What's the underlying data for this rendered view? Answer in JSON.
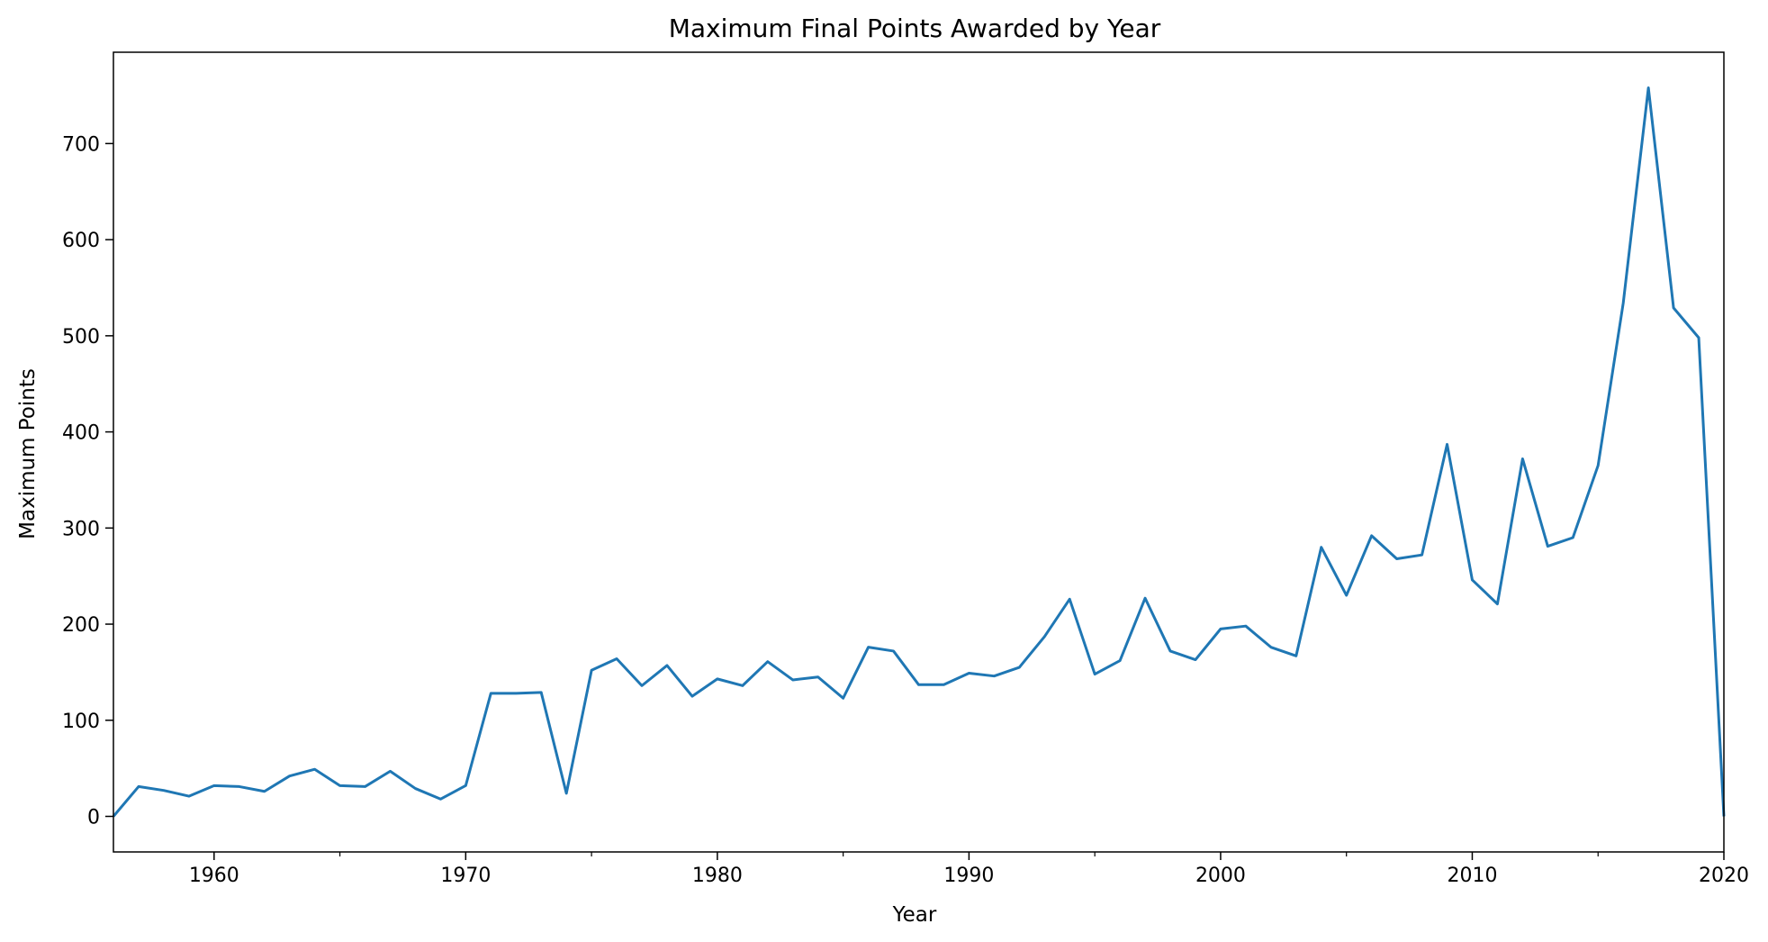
{
  "chart_data": {
    "type": "line",
    "title": "Maximum Final Points Awarded by Year",
    "xlabel": "Year",
    "ylabel": "Maximum Points",
    "xlim": [
      1956,
      2020
    ],
    "ylim": [
      -37,
      795
    ],
    "x_ticks": [
      1960,
      1970,
      1980,
      1990,
      2000,
      2010,
      2020
    ],
    "x_tick_labels": [
      "1960",
      "1970",
      "1980",
      "1990",
      "2000",
      "2010",
      "2020"
    ],
    "x_minor_ticks": [
      1965,
      1975,
      1985,
      1995,
      2005,
      2015
    ],
    "y_ticks": [
      0,
      100,
      200,
      300,
      400,
      500,
      600,
      700
    ],
    "y_tick_labels": [
      "0",
      "100",
      "200",
      "300",
      "400",
      "500",
      "600",
      "700"
    ],
    "grid": false,
    "series": [
      {
        "color": "#1f77b4",
        "x": [
          1956,
          1957,
          1958,
          1959,
          1960,
          1961,
          1962,
          1963,
          1964,
          1965,
          1966,
          1967,
          1968,
          1969,
          1970,
          1971,
          1972,
          1973,
          1974,
          1975,
          1976,
          1977,
          1978,
          1979,
          1980,
          1981,
          1982,
          1983,
          1984,
          1985,
          1986,
          1987,
          1988,
          1989,
          1990,
          1991,
          1992,
          1993,
          1994,
          1995,
          1996,
          1997,
          1998,
          1999,
          2000,
          2001,
          2002,
          2003,
          2004,
          2005,
          2006,
          2007,
          2008,
          2009,
          2010,
          2011,
          2012,
          2013,
          2014,
          2015,
          2016,
          2017,
          2018,
          2019,
          2020
        ],
        "values": [
          0,
          31,
          27,
          21,
          32,
          31,
          26,
          42,
          49,
          32,
          31,
          47,
          29,
          18,
          32,
          128,
          128,
          129,
          24,
          152,
          164,
          136,
          157,
          125,
          143,
          136,
          161,
          142,
          145,
          123,
          176,
          172,
          137,
          137,
          149,
          146,
          155,
          187,
          226,
          148,
          162,
          227,
          172,
          163,
          195,
          198,
          176,
          167,
          280,
          230,
          292,
          268,
          272,
          387,
          246,
          221,
          372,
          281,
          290,
          365,
          534,
          758,
          529,
          498,
          0
        ]
      }
    ]
  }
}
